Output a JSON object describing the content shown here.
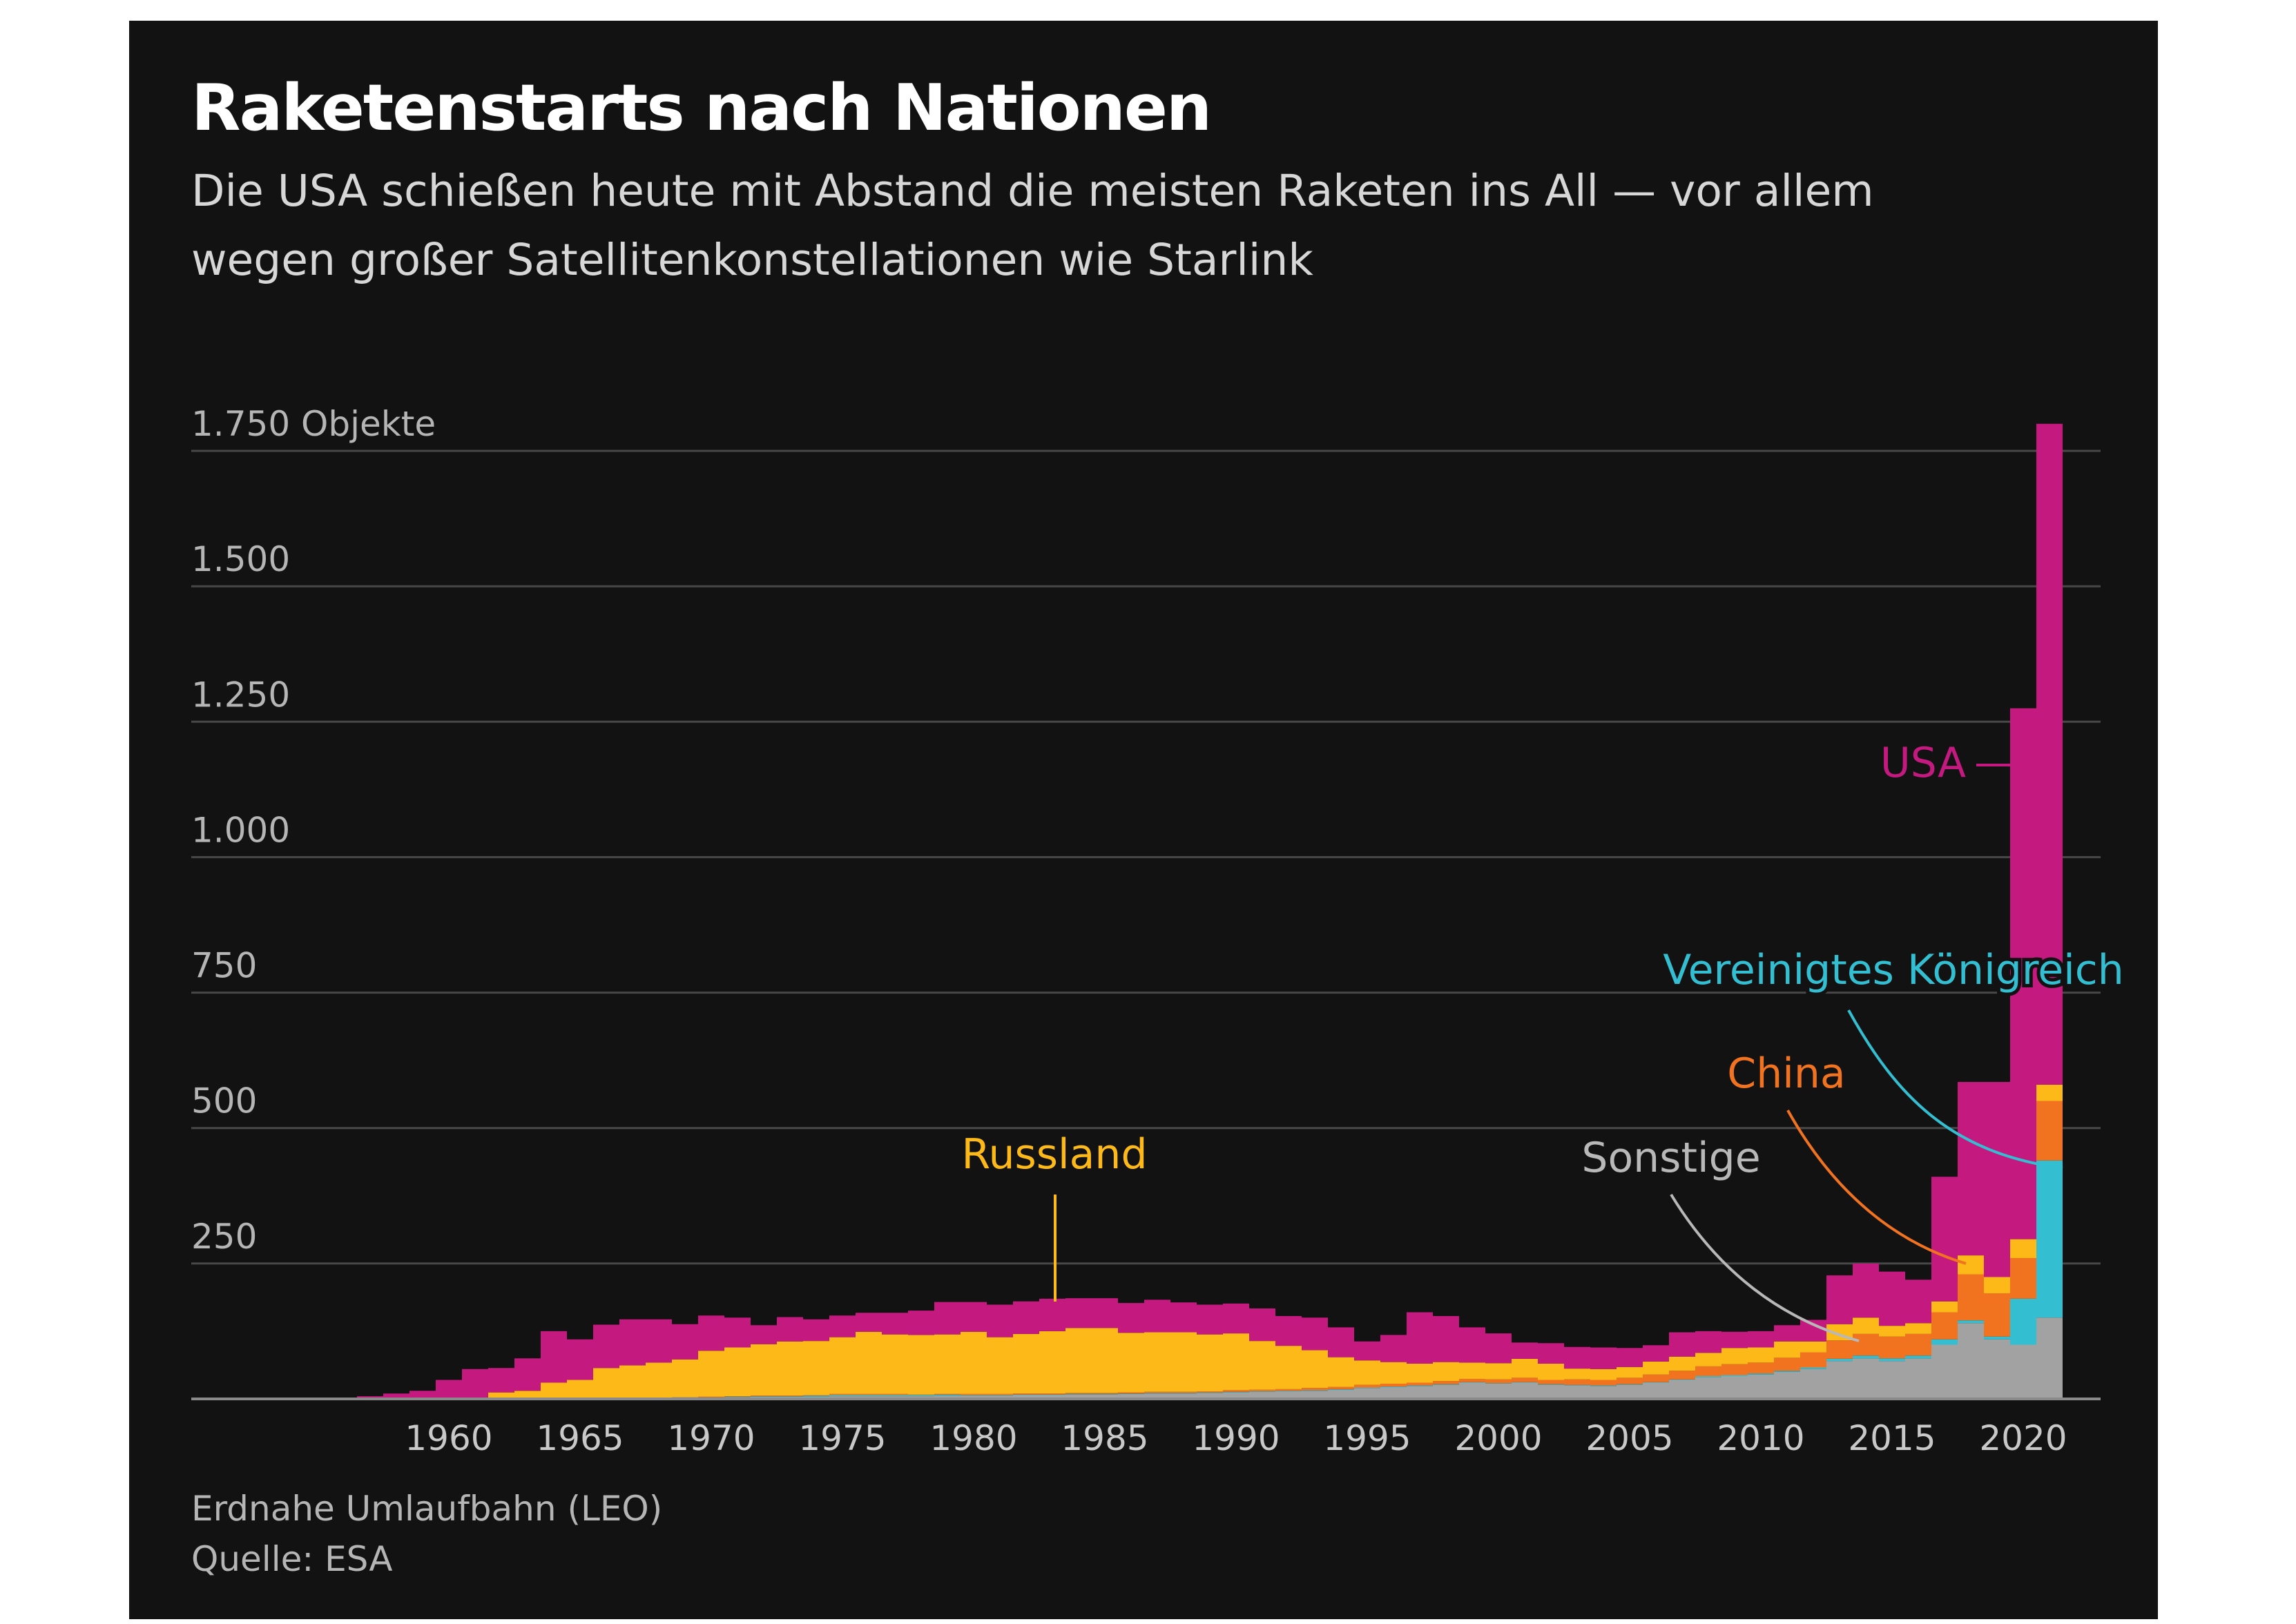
{
  "title": "Raketenstarts nach Nationen",
  "subtitle_lines": [
    "Die USA schießen heute mit Abstand die meisten Raketen ins All — vor allem",
    "wegen großer Satellitenkonstellationen wie Starlink"
  ],
  "footnote": "Erdnahe Umlaufbahn (LEO)",
  "source": "Quelle: ESA",
  "colors": {
    "background": "#121212",
    "Sonstige": "#a2a2a2",
    "Vereinigtes Königreich": "#33bfd1",
    "China": "#f1721f",
    "Russland": "#fcb918",
    "USA": "#c4197f",
    "grid": "#484848",
    "baseline": "#8a8a8a"
  },
  "chart_data": {
    "type": "area",
    "stacked": true,
    "stack_order": [
      "Sonstige",
      "Vereinigtes Königreich",
      "China",
      "Russland",
      "USA"
    ],
    "x": [
      1957,
      1958,
      1959,
      1960,
      1961,
      1962,
      1963,
      1964,
      1965,
      1966,
      1967,
      1968,
      1969,
      1970,
      1971,
      1972,
      1973,
      1974,
      1975,
      1976,
      1977,
      1978,
      1979,
      1980,
      1981,
      1982,
      1983,
      1984,
      1985,
      1986,
      1987,
      1988,
      1989,
      1990,
      1991,
      1992,
      1993,
      1994,
      1995,
      1996,
      1997,
      1998,
      1999,
      2000,
      2001,
      2002,
      2003,
      2004,
      2005,
      2006,
      2007,
      2008,
      2009,
      2010,
      2011,
      2012,
      2013,
      2014,
      2015,
      2016,
      2017,
      2018,
      2019,
      2020,
      2021
    ],
    "series": [
      {
        "name": "Sonstige",
        "values": [
          0,
          0,
          0,
          0,
          0,
          0,
          0,
          0,
          0,
          2,
          2,
          2,
          3,
          3,
          3,
          4,
          4,
          4,
          5,
          5,
          5,
          5,
          6,
          6,
          6,
          7,
          7,
          8,
          8,
          9,
          10,
          10,
          11,
          12,
          13,
          14,
          15,
          17,
          20,
          22,
          24,
          26,
          30,
          28,
          30,
          26,
          25,
          24,
          26,
          30,
          35,
          40,
          42,
          45,
          50,
          55,
          70,
          75,
          70,
          75,
          100,
          140,
          110,
          100,
          150
        ]
      },
      {
        "name": "Vereinigtes Königreich",
        "values": [
          0,
          0,
          0,
          0,
          0,
          0,
          0,
          0,
          0,
          0,
          0,
          0,
          0,
          0,
          1,
          1,
          1,
          2,
          2,
          2,
          2,
          2,
          2,
          1,
          1,
          1,
          1,
          1,
          1,
          1,
          1,
          1,
          1,
          1,
          1,
          1,
          1,
          1,
          1,
          1,
          1,
          1,
          1,
          1,
          1,
          1,
          1,
          1,
          1,
          1,
          1,
          2,
          2,
          2,
          2,
          3,
          4,
          5,
          5,
          5,
          10,
          5,
          5,
          85,
          290
        ]
      },
      {
        "name": "China",
        "values": [
          0,
          0,
          0,
          0,
          0,
          0,
          0,
          0,
          0,
          0,
          0,
          0,
          0,
          1,
          1,
          1,
          1,
          1,
          2,
          2,
          2,
          1,
          1,
          2,
          2,
          2,
          2,
          2,
          2,
          2,
          2,
          2,
          2,
          3,
          3,
          3,
          4,
          4,
          5,
          5,
          5,
          6,
          6,
          7,
          8,
          8,
          10,
          10,
          12,
          14,
          16,
          18,
          20,
          20,
          24,
          28,
          34,
          40,
          40,
          40,
          50,
          85,
          80,
          75,
          110
        ]
      },
      {
        "name": "Russland",
        "values": [
          0,
          0,
          0,
          0,
          0,
          12,
          15,
          30,
          35,
          55,
          60,
          65,
          70,
          85,
          90,
          95,
          100,
          100,
          105,
          115,
          110,
          110,
          110,
          115,
          105,
          110,
          115,
          120,
          120,
          110,
          110,
          110,
          105,
          105,
          90,
          80,
          70,
          55,
          45,
          40,
          35,
          35,
          30,
          30,
          35,
          30,
          20,
          20,
          20,
          24,
          26,
          25,
          30,
          28,
          30,
          20,
          30,
          30,
          20,
          20,
          20,
          35,
          30,
          35,
          30
        ]
      },
      {
        "name": "USA",
        "values": [
          5,
          10,
          15,
          35,
          55,
          45,
          60,
          95,
          75,
          80,
          85,
          80,
          65,
          65,
          55,
          35,
          45,
          40,
          40,
          35,
          40,
          45,
          60,
          55,
          60,
          60,
          60,
          55,
          55,
          55,
          60,
          55,
          55,
          55,
          60,
          55,
          60,
          55,
          35,
          50,
          95,
          85,
          65,
          55,
          30,
          38,
          40,
          40,
          35,
          30,
          45,
          40,
          30,
          30,
          30,
          40,
          90,
          100,
          100,
          80,
          230,
          320,
          360,
          980,
          1220
        ]
      }
    ],
    "xlim": [
      1957,
      2022
    ],
    "ylim": [
      0,
      1750
    ],
    "yticks": [
      250,
      500,
      750,
      1000,
      1250,
      1500,
      1750
    ],
    "ytick_labels": [
      "250",
      "500",
      "750",
      "1.000",
      "1.250",
      "1.500",
      "1.750 Objekte"
    ],
    "xticks": [
      1960,
      1965,
      1970,
      1975,
      1980,
      1985,
      1990,
      1995,
      2000,
      2005,
      2010,
      2015,
      2020
    ],
    "xtick_labels": [
      "1960",
      "1965",
      "1970",
      "1975",
      "1980",
      "1985",
      "1990",
      "1995",
      "2000",
      "2005",
      "2010",
      "2015",
      "2020"
    ],
    "grid": "horizontal",
    "annotations": [
      {
        "text": "USA",
        "series": "USA"
      },
      {
        "text": "Vereinigtes Königreich",
        "series": "Vereinigtes Königreich"
      },
      {
        "text": "China",
        "series": "China"
      },
      {
        "text": "Russland",
        "series": "Russland"
      },
      {
        "text": "Sonstige",
        "series": "Sonstige"
      }
    ]
  }
}
